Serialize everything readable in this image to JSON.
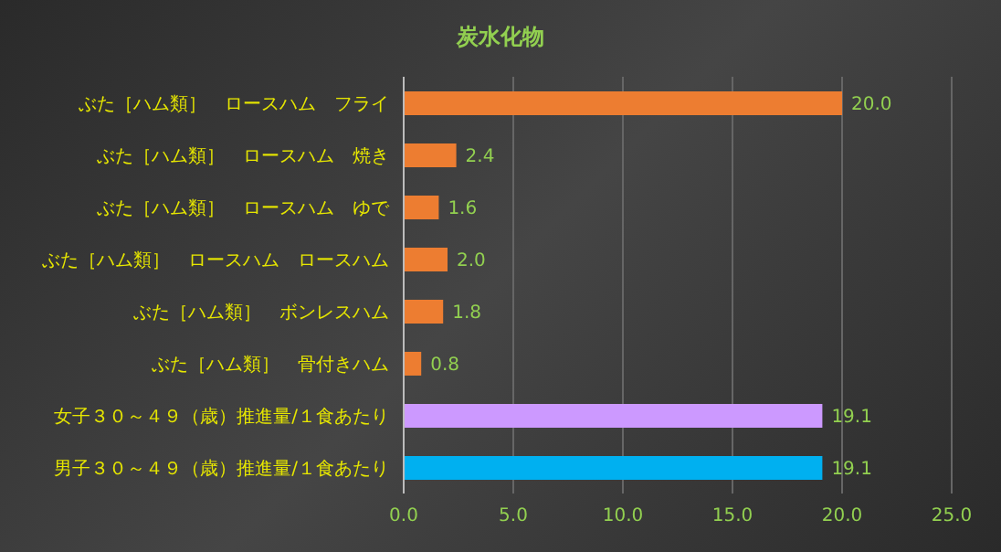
{
  "chart_data": {
    "type": "bar",
    "orientation": "horizontal",
    "title": "炭水化物",
    "categories": [
      "ぶた［ハム類］　ロースハム　フライ",
      "ぶた［ハム類］　ロースハム　焼き",
      "ぶた［ハム類］　ロースハム　ゆで",
      "ぶた［ハム類］　ロースハム　ロースハム",
      "ぶた［ハム類］　ボンレスハム",
      "ぶた［ハム類］　骨付きハム",
      "女子３０～４９（歳）推進量/１食あたり",
      "男子３０～４９（歳）推進量/１食あたり"
    ],
    "values": [
      20.0,
      2.4,
      1.6,
      2.0,
      1.8,
      0.8,
      19.1,
      19.1
    ],
    "colors": [
      "#ed7d31",
      "#ed7d31",
      "#ed7d31",
      "#ed7d31",
      "#ed7d31",
      "#ed7d31",
      "#cc99ff",
      "#00b0f0"
    ],
    "xlim": [
      0,
      25
    ],
    "xticks": [
      {
        "value": 0,
        "label": "0.0"
      },
      {
        "value": 5,
        "label": "5.0"
      },
      {
        "value": 10,
        "label": "10.0"
      },
      {
        "value": 15,
        "label": "15.0"
      },
      {
        "value": 20,
        "label": "20.0"
      },
      {
        "value": 25,
        "label": "25.0"
      }
    ],
    "value_labels": [
      "20.0",
      "2.4",
      "1.6",
      "2.0",
      "1.8",
      "0.8",
      "19.1",
      "19.1"
    ],
    "grid": "x",
    "legend": false
  }
}
